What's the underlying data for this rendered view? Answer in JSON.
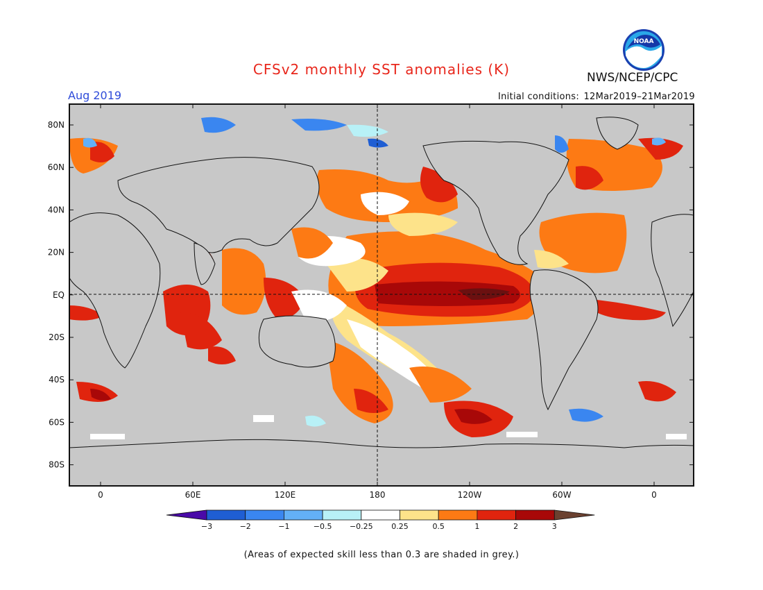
{
  "header": {
    "title": "CFSv2 monthly SST anomalies (K)",
    "agency": "NWS/NCEP/CPC",
    "logo_text": "NOAA",
    "month": "Aug 2019",
    "initial_conditions_label": "Initial conditions:",
    "initial_conditions_range": "12Mar2019–21Mar2019"
  },
  "map": {
    "type": "global SST anomaly forecast map",
    "projection": "cylindrical equidistant, centered on 180",
    "land_color": "#c8c8c8",
    "skill_mask_color": "#c8c8c8",
    "x_ticks": [
      "0",
      "60E",
      "120E",
      "180",
      "120W",
      "60W",
      "0"
    ],
    "y_ticks": [
      "80N",
      "60N",
      "40N",
      "20N",
      "EQ",
      "20S",
      "40S",
      "60S",
      "80S"
    ],
    "reference_lines": [
      "equator dashed",
      "dateline dashed"
    ]
  },
  "colorbar": {
    "labels": [
      "−3",
      "−2",
      "−1",
      "−0.5",
      "−0.25",
      "0.25",
      "0.5",
      "1",
      "2",
      "3"
    ],
    "colors": [
      "#4a0aa8",
      "#1f5ed3",
      "#3a86f0",
      "#63b0f7",
      "#b8f1f7",
      "#ffffff",
      "#fde38a",
      "#fd7a14",
      "#e0240e",
      "#a80808",
      "#6b4130"
    ]
  },
  "footnote": "(Areas of expected skill less than 0.3 are shaded in grey.)"
}
